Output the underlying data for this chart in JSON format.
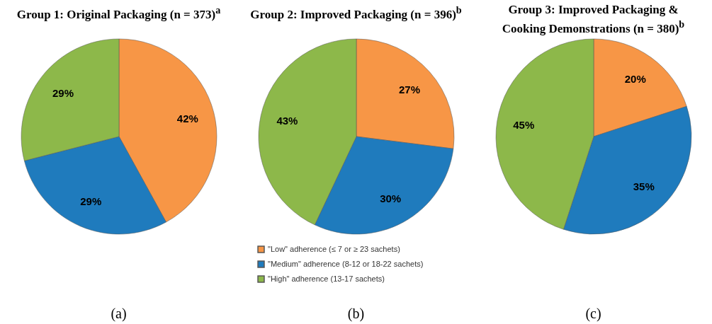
{
  "chart_data": [
    {
      "type": "pie",
      "title": "Group 1: Original Packaging (n = 373)$^{a}$",
      "categories": [
        null,
        null,
        null
      ],
      "values": [
        42,
        29,
        29
      ],
      "value_labels": [
        "42%",
        "29%",
        "29%"
      ],
      "colors": [
        "#f79646",
        "#1f7bbd",
        "#8db84a"
      ],
      "annotations": [
        "(a)"
      ]
    },
    {
      "type": "pie",
      "title": "Group 2: Improved Packaging (n = 396)$^{b}$",
      "categories": [
        "\"Low\" adherence (≤ 7 or ≥ 23 sachets)",
        "\"Medium\" adherence (8-12 or 18-22 sachets)",
        "\"High\" adherence (13-17 sachets)"
      ],
      "values": [
        27,
        30,
        43
      ],
      "value_labels": [
        "27%",
        "30%",
        "43%"
      ],
      "colors": [
        "#f79646",
        "#1f7bbd",
        "#8db84a"
      ],
      "legend": "bottom",
      "annotations": [
        "(b)"
      ]
    },
    {
      "type": "pie",
      "title": "Group 3: Improved Packaging & Cooking Demonstrations (n = 380)$^{b}$",
      "categories": [
        null,
        null,
        null
      ],
      "values": [
        20,
        35,
        45
      ],
      "value_labels": [
        "20%",
        "35%",
        "45%"
      ],
      "colors": [
        "#f79646",
        "#1f7bbd",
        "#8db84a"
      ],
      "annotations": [
        "(c)"
      ]
    }
  ]
}
